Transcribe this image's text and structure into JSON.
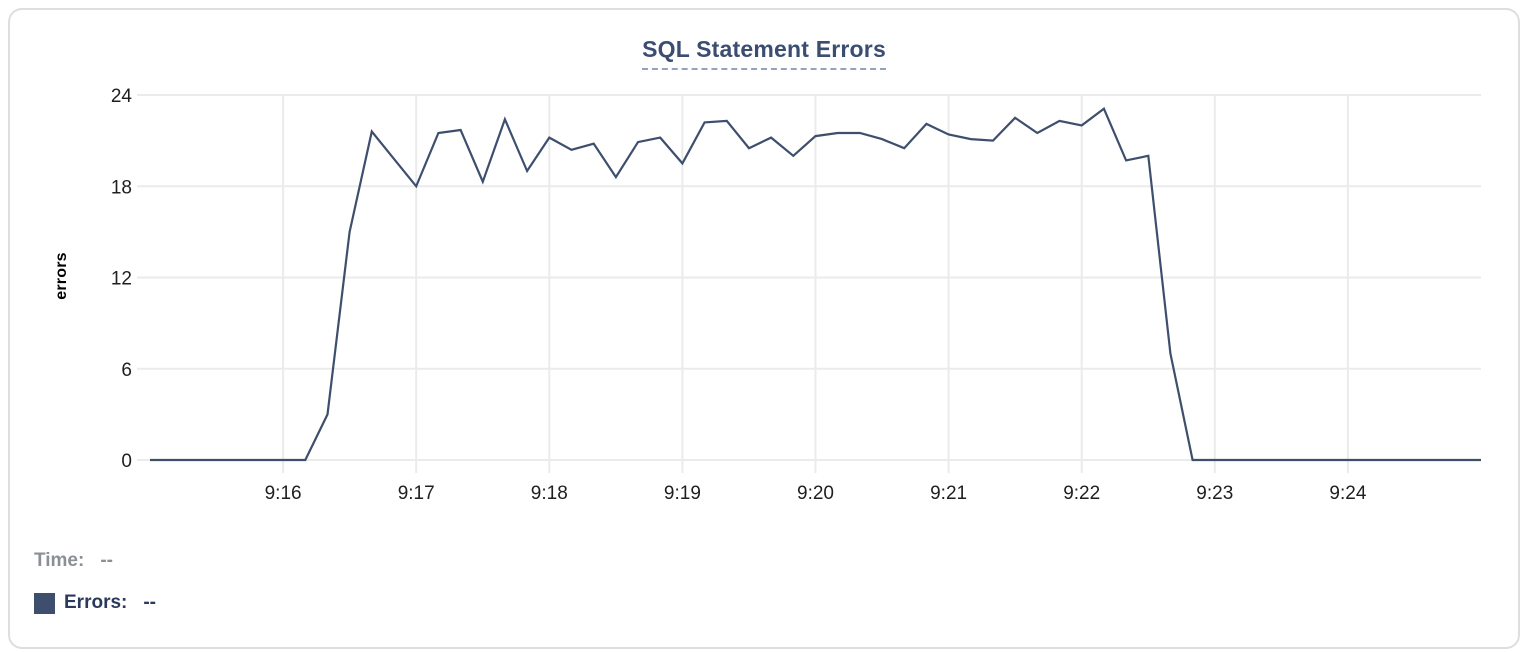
{
  "colors": {
    "series_line": "#3e4f6d",
    "title_text": "#3b4d70",
    "title_dash": "#97a3bd",
    "tick_text": "#1f1f1f",
    "gridline": "#ebebeb",
    "legend_muted": "#8b9096",
    "legend_dark": "#2b3a5c",
    "card_border": "#dcdee1"
  },
  "tooltip": {
    "time_label": "Time:",
    "time_value": "--",
    "errors_label": "Errors:",
    "errors_value": "--"
  },
  "chart_data": {
    "type": "line",
    "title": "SQL Statement Errors",
    "xlabel": "",
    "ylabel": "errors",
    "grid": true,
    "ylim": [
      0,
      24
    ],
    "yticks": [
      0,
      6,
      12,
      18,
      24
    ],
    "x_axis": {
      "range": [
        "9:15:00",
        "9:25:00"
      ],
      "span_seconds": 600,
      "interval_seconds": 10,
      "ticks": [
        {
          "label": "9:16",
          "offset_seconds": 60
        },
        {
          "label": "9:17",
          "offset_seconds": 120
        },
        {
          "label": "9:18",
          "offset_seconds": 180
        },
        {
          "label": "9:19",
          "offset_seconds": 240
        },
        {
          "label": "9:20",
          "offset_seconds": 300
        },
        {
          "label": "9:21",
          "offset_seconds": 360
        },
        {
          "label": "9:22",
          "offset_seconds": 420
        },
        {
          "label": "9:23",
          "offset_seconds": 480
        },
        {
          "label": "9:24",
          "offset_seconds": 540
        }
      ]
    },
    "series": [
      {
        "name": "Errors",
        "color": "#3e4f6d",
        "x": [
          "9:15:00",
          "9:15:10",
          "9:15:20",
          "9:15:30",
          "9:15:40",
          "9:15:50",
          "9:16:00",
          "9:16:10",
          "9:16:20",
          "9:16:30",
          "9:16:40",
          "9:16:50",
          "9:17:00",
          "9:17:10",
          "9:17:20",
          "9:17:30",
          "9:17:40",
          "9:17:50",
          "9:18:00",
          "9:18:10",
          "9:18:20",
          "9:18:30",
          "9:18:40",
          "9:18:50",
          "9:19:00",
          "9:19:10",
          "9:19:20",
          "9:19:30",
          "9:19:40",
          "9:19:50",
          "9:20:00",
          "9:20:10",
          "9:20:20",
          "9:20:30",
          "9:20:40",
          "9:20:50",
          "9:21:00",
          "9:21:10",
          "9:21:20",
          "9:21:30",
          "9:21:40",
          "9:21:50",
          "9:22:00",
          "9:22:10",
          "9:22:20",
          "9:22:30",
          "9:22:40",
          "9:22:50",
          "9:23:00",
          "9:23:10",
          "9:23:20",
          "9:23:30",
          "9:23:40",
          "9:23:50",
          "9:24:00",
          "9:24:10",
          "9:24:20",
          "9:24:30",
          "9:24:40",
          "9:24:50",
          "9:25:00"
        ],
        "values": [
          0,
          0,
          0,
          0,
          0,
          0,
          0,
          0,
          3,
          15,
          21.6,
          19.8,
          18,
          21.5,
          21.7,
          18.3,
          22.4,
          19,
          21.2,
          20.4,
          20.8,
          18.6,
          20.9,
          21.2,
          19.5,
          22.2,
          22.3,
          20.5,
          21.2,
          20,
          21.3,
          21.5,
          21.5,
          21.1,
          20.5,
          22.1,
          21.4,
          21.1,
          21,
          22.5,
          21.5,
          22.3,
          22,
          23.1,
          19.7,
          20,
          7,
          0,
          0,
          0,
          0,
          0,
          0,
          0,
          0,
          0,
          0,
          0,
          0,
          0,
          0
        ]
      }
    ],
    "legend_position": "bottom-left"
  }
}
